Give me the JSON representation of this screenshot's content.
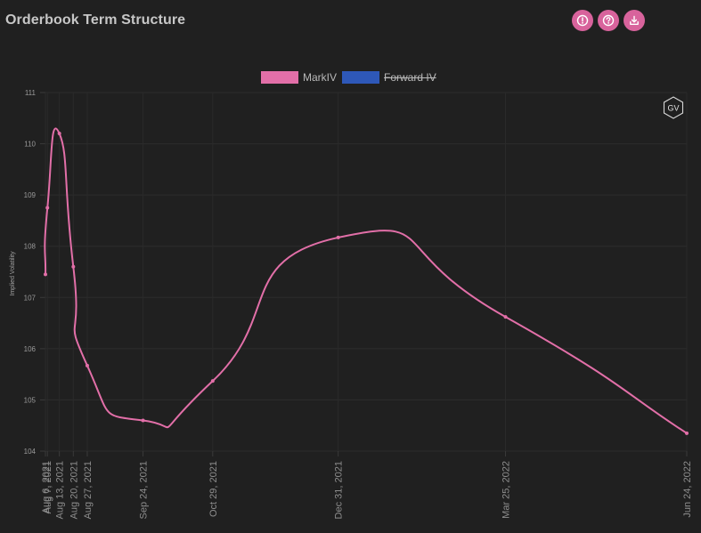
{
  "header": {
    "title": "Orderbook Term Structure",
    "buttons": [
      {
        "icon": "alert-icon",
        "label": "info"
      },
      {
        "icon": "help-icon",
        "label": "help"
      },
      {
        "icon": "download-icon",
        "label": "download"
      }
    ],
    "accent_color": "#d8639c"
  },
  "badge": {
    "text": "GV"
  },
  "chart_data": {
    "type": "line",
    "title": "",
    "ylabel": "Implied Volatility",
    "xlabel": "",
    "ylim": [
      104,
      111
    ],
    "yticks": [
      104,
      105,
      106,
      107,
      108,
      109,
      110,
      111
    ],
    "x_dates": [
      "2021-08-06",
      "2021-08-07",
      "2021-08-13",
      "2021-08-20",
      "2021-08-27",
      "2021-09-24",
      "2021-10-29",
      "2021-12-31",
      "2022-03-25",
      "2022-06-24"
    ],
    "x_labels": [
      "Aug 6, 2021",
      "Aug 7, 2021",
      "Aug 13, 2021",
      "Aug 20, 2021",
      "Aug 27, 2021",
      "Sep 24, 2021",
      "Oct 29, 2021",
      "Dec 31, 2021",
      "Mar 25, 2022",
      "Jun 24, 2022"
    ],
    "grid": true,
    "legend_position": "top",
    "series": [
      {
        "name": "MarkIV",
        "color": "#e26fa8",
        "visible": true,
        "values": [
          107.45,
          108.75,
          110.2,
          107.6,
          105.67,
          104.6,
          105.37,
          108.17,
          106.62,
          104.35
        ]
      },
      {
        "name": "Forward IV",
        "color": "#2e58b8",
        "visible": false,
        "values": []
      }
    ]
  }
}
